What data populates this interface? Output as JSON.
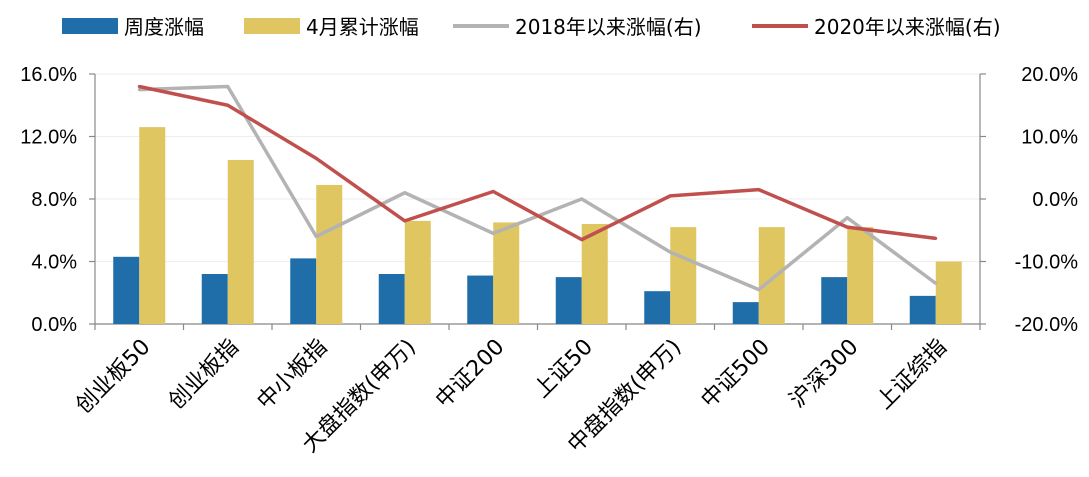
{
  "chart_data": {
    "type": "bar+line",
    "categories": [
      "创业板50",
      "创业板指",
      "中小板指",
      "大盘指数(申万)",
      "中证200",
      "上证50",
      "中盘指数(申万)",
      "中证500",
      "沪深300",
      "上证综指"
    ],
    "bar_series": [
      {
        "name": "周度涨幅",
        "color": "#1f6ea9",
        "values": [
          4.3,
          3.2,
          4.2,
          3.2,
          3.1,
          3.0,
          2.1,
          1.4,
          3.0,
          1.8
        ]
      },
      {
        "name": "4月累计涨幅",
        "color": "#dfc660",
        "values": [
          12.6,
          10.5,
          8.9,
          6.6,
          6.5,
          6.4,
          6.2,
          6.2,
          6.2,
          4.0
        ]
      }
    ],
    "line_series": [
      {
        "name": "2018年以来涨幅(右)",
        "color": "#b3b3b3",
        "values": [
          17.5,
          18.0,
          -6.0,
          1.0,
          -5.5,
          0.0,
          -8.5,
          -14.5,
          -3.0,
          -13.5
        ]
      },
      {
        "name": "2020年以来涨幅(右)",
        "color": "#c0504d",
        "values": [
          18.0,
          15.0,
          6.5,
          -3.5,
          1.2,
          -6.5,
          0.5,
          1.5,
          -4.5,
          -6.3
        ]
      }
    ],
    "y_left": {
      "min": 0,
      "max": 16,
      "ticks": [
        "0.0%",
        "4.0%",
        "8.0%",
        "12.0%",
        "16.0%"
      ]
    },
    "y_right": {
      "min": -20,
      "max": 20,
      "ticks": [
        "-20.0%",
        "-10.0%",
        "0.0%",
        "10.0%",
        "20.0%"
      ]
    },
    "legend_position": "top",
    "grid": true
  }
}
